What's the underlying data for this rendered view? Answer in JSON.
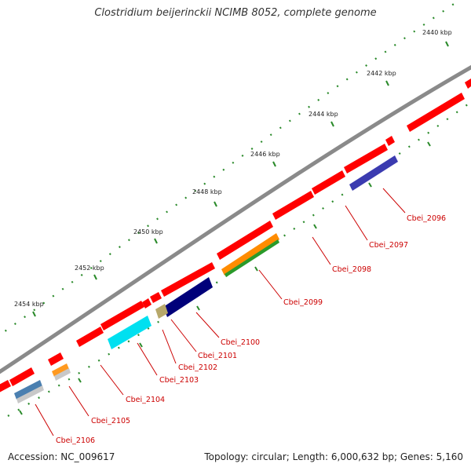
{
  "title": "Clostridium beijerinckii NCIMB 8052, complete genome",
  "footer": {
    "accession": "Accession: NC_009617",
    "summary": "Topology: circular; Length: 6,000,632 bp; Genes: 5,160"
  },
  "ruler": {
    "ticks": [
      "2440 kbp",
      "2442 kbp",
      "2444 kbp",
      "2446 kbp",
      "2448 kbp",
      "2450 kbp",
      "2452 kbp",
      "2454 kbp"
    ]
  },
  "genes": [
    {
      "label": "Cbei_2096",
      "color": "#3b3bb0"
    },
    {
      "label": "Cbei_2097",
      "color": "#ff0000"
    },
    {
      "label": "Cbei_2098",
      "color": "#ff0000"
    },
    {
      "label": "Cbei_2099",
      "color": "#ff8c00"
    },
    {
      "label": "Cbei_2100",
      "color": "#00007a"
    },
    {
      "label": "Cbei_2101",
      "color": "#b7a86a"
    },
    {
      "label": "Cbei_2102",
      "color": "#ff0000"
    },
    {
      "label": "Cbei_2103",
      "color": "#00e0f0"
    },
    {
      "label": "Cbei_2104",
      "color": "#ff0000"
    },
    {
      "label": "Cbei_2105",
      "color": "#ff9a20"
    },
    {
      "label": "Cbei_2106",
      "color": "#4a7fb0"
    }
  ],
  "colors": {
    "backbone": "#8a8a8a",
    "cds_red": "#ff0000",
    "tick_green": "#2a8a2a",
    "label_red": "#cc0000"
  }
}
